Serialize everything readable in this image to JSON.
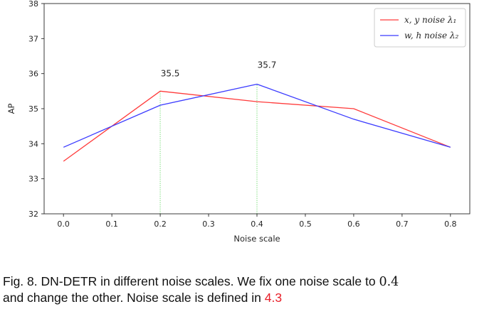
{
  "chart_data": {
    "type": "line",
    "x": [
      0.0,
      0.2,
      0.4,
      0.6,
      0.8
    ],
    "x_ticks": [
      "0.0",
      "0.1",
      "0.2",
      "0.3",
      "0.4",
      "0.5",
      "0.6",
      "0.7",
      "0.8"
    ],
    "x_tick_values": [
      0.0,
      0.1,
      0.2,
      0.3,
      0.4,
      0.5,
      0.6,
      0.7,
      0.8
    ],
    "y_ticks": [
      "32",
      "33",
      "34",
      "35",
      "36",
      "37",
      "38"
    ],
    "y_tick_values": [
      32,
      33,
      34,
      35,
      36,
      37,
      38
    ],
    "xlim": [
      -0.04,
      0.84
    ],
    "ylim": [
      32,
      38
    ],
    "xlabel": "Noise scale",
    "ylabel": "AP",
    "series": [
      {
        "name": "x, y noise λ₁",
        "color": "#ff3b3b",
        "values": [
          33.5,
          35.5,
          35.2,
          35.0,
          33.9
        ]
      },
      {
        "name": "w, h noise λ₂",
        "color": "#3b3bff",
        "values": [
          33.9,
          35.1,
          35.7,
          34.7,
          33.9
        ]
      }
    ],
    "vlines": [
      {
        "x": 0.2,
        "y_top": 35.5
      },
      {
        "x": 0.4,
        "y_top": 35.7
      }
    ],
    "vline_color": "#98e598",
    "annotations": [
      {
        "text": "35.5",
        "x": 0.2,
        "y": 36.0
      },
      {
        "text": "35.7",
        "x": 0.4,
        "y": 36.25
      }
    ],
    "legend_position": "top-right",
    "grid": false
  },
  "caption": {
    "line1_prefix": "Fig. 8. DN-DETR in different noise scales. We fix one noise scale to ",
    "line1_math": "0.4",
    "line2_prefix": "and change the other. Noise scale is defined in ",
    "line2_ref": "4.3"
  }
}
